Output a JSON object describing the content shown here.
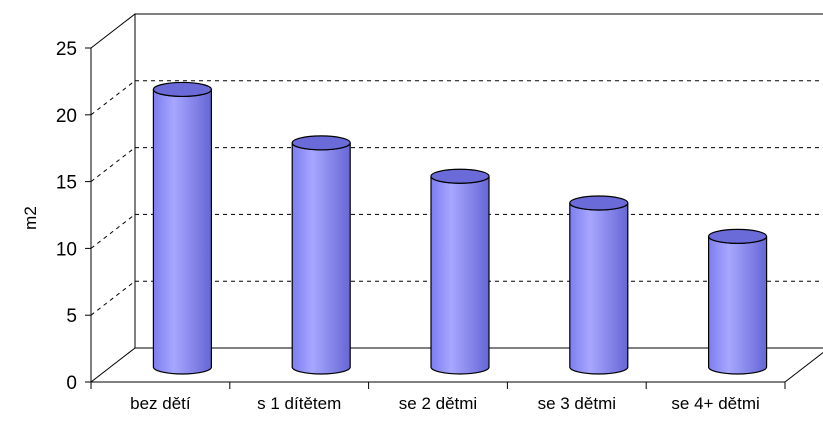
{
  "chart_data": {
    "type": "bar",
    "style": "3d-cylinder",
    "categories": [
      "bez dětí",
      "s 1 dítětem",
      "se 2 dětmi",
      "se 3 dětmi",
      "se 4+ dětmi"
    ],
    "values": [
      21,
      17,
      14.5,
      12.5,
      10
    ],
    "title": "",
    "xlabel": "",
    "ylabel": "m2",
    "ylim": [
      0,
      25
    ],
    "yticks": [
      0,
      5,
      10,
      15,
      20,
      25
    ],
    "grid": true,
    "legend": "none",
    "colors": {
      "bar": "#9999ff",
      "bar_top": "#6a6ad8",
      "outline": "#000000",
      "grid": "#000000"
    }
  }
}
